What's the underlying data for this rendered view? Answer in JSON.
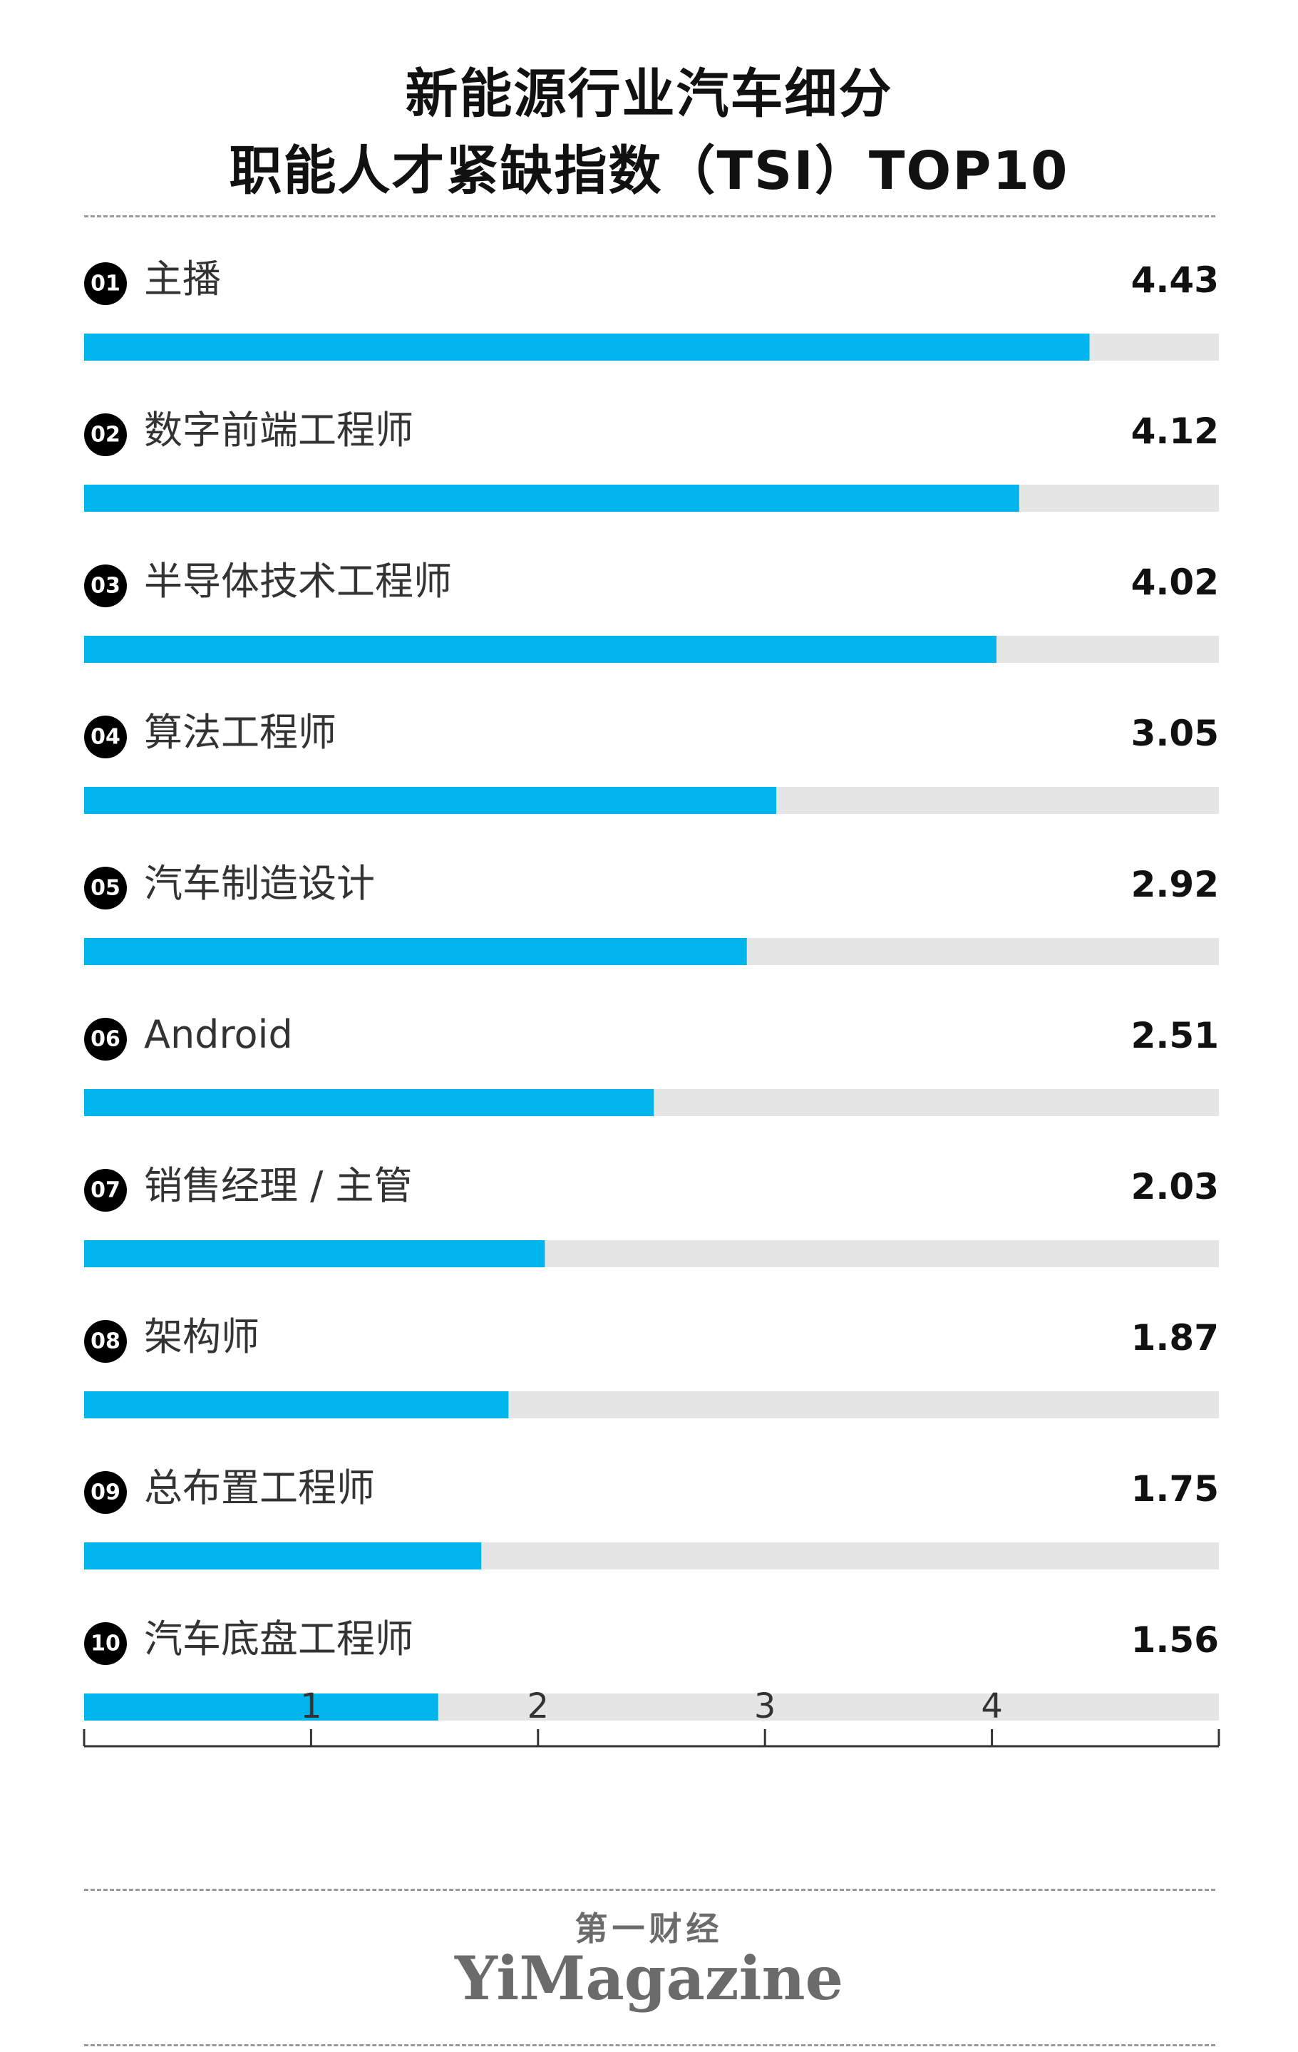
{
  "title_line1": "新能源行业汽车细分",
  "title_line2": "职能人才紧缺指数（TSI）TOP10",
  "brand": {
    "cn": "第一财经",
    "en": "YiMagazine"
  },
  "colors": {
    "bar": "#00b4ec",
    "track": "#e5e5e5",
    "rank_badge": "#000000",
    "text": "#111111",
    "label": "#333333"
  },
  "chart_data": {
    "type": "bar",
    "orientation": "horizontal",
    "title": "新能源行业汽车细分 职能人才紧缺指数（TSI）TOP10",
    "ranks": [
      "01",
      "02",
      "03",
      "04",
      "05",
      "06",
      "07",
      "08",
      "09",
      "10"
    ],
    "categories": [
      "主播",
      "数字前端工程师",
      "半导体技术工程师",
      "算法工程师",
      "汽车制造设计",
      "Android",
      "销售经理 / 主管",
      "架构师",
      "总布置工程师",
      "汽车底盘工程师"
    ],
    "values": [
      4.43,
      4.12,
      4.02,
      3.05,
      2.92,
      2.51,
      2.03,
      1.87,
      1.75,
      1.56
    ],
    "value_labels": [
      "4.43",
      "4.12",
      "4.02",
      "3.05",
      "2.92",
      "2.51",
      "2.03",
      "1.87",
      "1.75",
      "1.56"
    ],
    "xlim": [
      0,
      5
    ],
    "x_ticks": [
      1,
      2,
      3,
      4
    ],
    "x_tick_labels": [
      "1",
      "2",
      "3",
      "4"
    ],
    "grid": false,
    "legend": "none"
  }
}
